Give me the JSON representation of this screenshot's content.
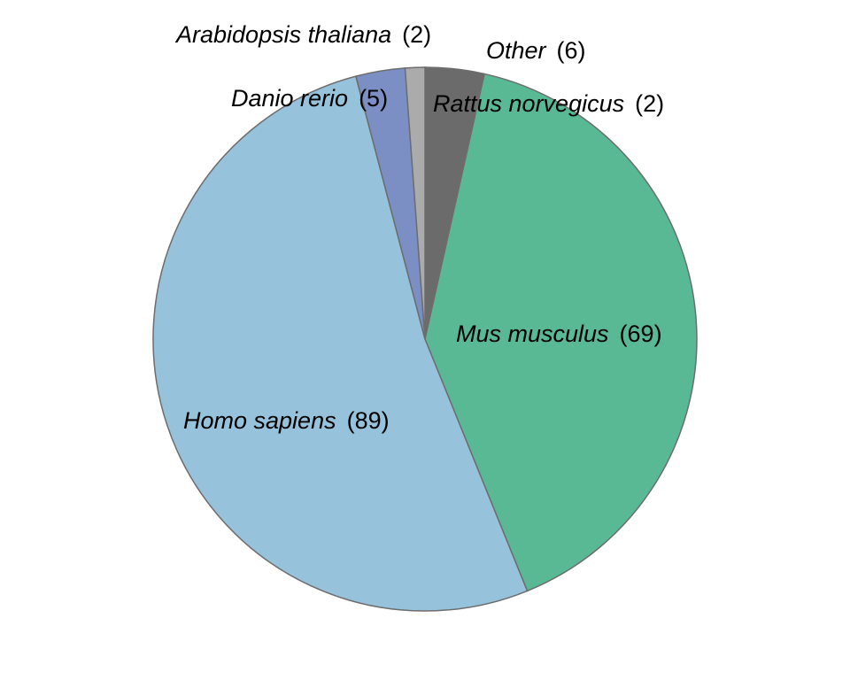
{
  "chart_data": {
    "type": "pie",
    "title": "",
    "slices": [
      {
        "label": "Other",
        "value": 6,
        "display_value": "(6)",
        "color": "#6b6b6b"
      },
      {
        "label": "Mus musculus",
        "value": 69,
        "display_value": "(69)",
        "color": "#59b994"
      },
      {
        "label": "Homo sapiens",
        "value": 89,
        "display_value": "(89)",
        "color": "#96c3db"
      },
      {
        "label": "Danio rerio",
        "value": 5,
        "display_value": "(5)",
        "color": "#7b8fc4"
      },
      {
        "label": "Arabidopsis thaliana",
        "value": 2,
        "display_value": "(2)",
        "color": "#ababab"
      }
    ],
    "external_labels": [
      {
        "label": "Rattus norvegicus",
        "value": 2,
        "display_value": "(2)"
      }
    ],
    "legend": "none",
    "start_angle_deg": 0,
    "direction": "clockwise"
  }
}
